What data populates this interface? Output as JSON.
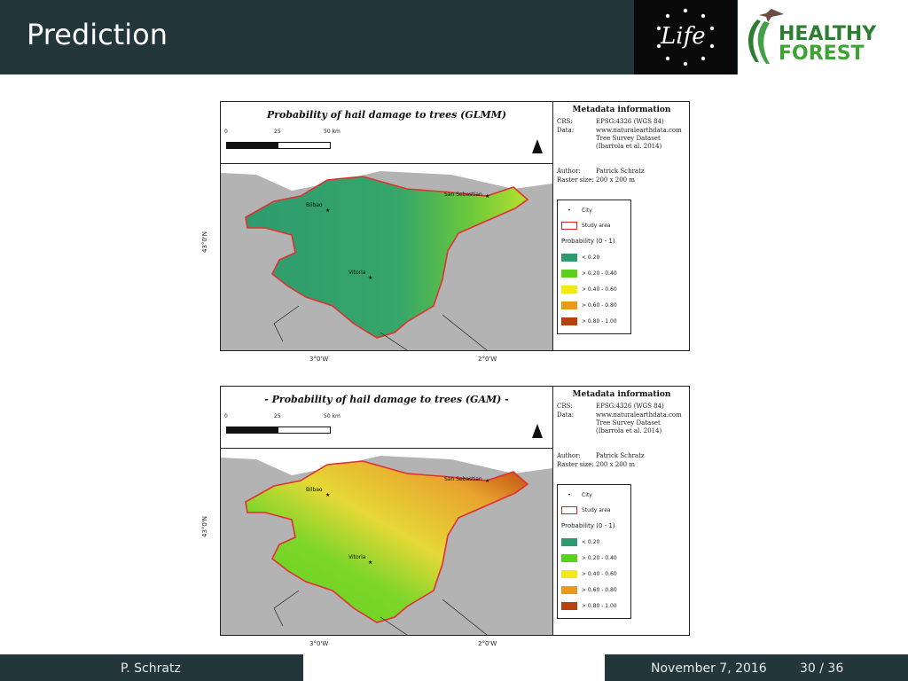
{
  "slide": {
    "title": "Prediction",
    "logos": {
      "life": "Life",
      "forest_line1": "HEALTHY",
      "forest_line2": "FOREST"
    }
  },
  "maps": [
    {
      "title": "Probability of hail damage to trees (GLMM)",
      "scale_ticks": [
        "0",
        "25",
        "50 km"
      ],
      "lon_ticks": [
        "3°0'W",
        "2°0'W"
      ],
      "lat_tick": "43°0'N",
      "cities": [
        "Bilbao",
        "San Sebastian",
        "Vitoria"
      ],
      "metadata": {
        "heading": "Metadata information",
        "rows": [
          {
            "key": "CRS:",
            "value": "EPSG:4326 (WGS 84)"
          },
          {
            "key": "Data:",
            "value": "www.naturalearthdata.com Tree Survey Dataset (Ibarrola et al. 2014)"
          },
          {
            "key": "Author:",
            "value": "Patrick Schratz"
          },
          {
            "key": "Raster size:",
            "value": "200 x 200 m"
          }
        ]
      },
      "legend": {
        "city": "City",
        "study_area": "Study area",
        "heading": "Probability (0 - 1)",
        "classes": [
          "< 0.20",
          "> 0.20 - 0.40",
          "> 0.40 - 0.60",
          "> 0.60 - 0.80",
          "> 0.80 - 1.00"
        ]
      }
    },
    {
      "title": "- Probability of hail damage to trees (GAM) -",
      "scale_ticks": [
        "0",
        "25",
        "50 km"
      ],
      "lon_ticks": [
        "3°0'W",
        "2°0'W"
      ],
      "lat_tick": "43°0'N",
      "cities": [
        "Bilbao",
        "San Sebastian",
        "Vitoria"
      ],
      "metadata": {
        "heading": "Metadata information",
        "rows": [
          {
            "key": "CRS:",
            "value": "EPSG:4326 (WGS 84)"
          },
          {
            "key": "Data:",
            "value": "www.naturalearthdata.com Tree Survey Dataset (Ibarrola et al. 2014)"
          },
          {
            "key": "Author:",
            "value": "Patrick Schratz"
          },
          {
            "key": "Raster size:",
            "value": "200 x 200 m"
          }
        ]
      },
      "legend": {
        "city": "City",
        "study_area": "Study area",
        "heading": "Probability (0 - 1)",
        "classes": [
          "< 0.20",
          "> 0.20 - 0.40",
          "> 0.40 - 0.60",
          "> 0.60 - 0.80",
          "> 0.80 - 1.00"
        ]
      }
    }
  ],
  "legend_colors": [
    "#2e9b6e",
    "#5ad21c",
    "#f2e81a",
    "#e89a1e",
    "#b8420e"
  ],
  "colors": {
    "header_bg": "#23373b",
    "land": "#b3b3b3",
    "boundary": "#e03030"
  },
  "footer": {
    "author": "P. Schratz",
    "date": "November 7, 2016",
    "page": "30 / 36"
  }
}
